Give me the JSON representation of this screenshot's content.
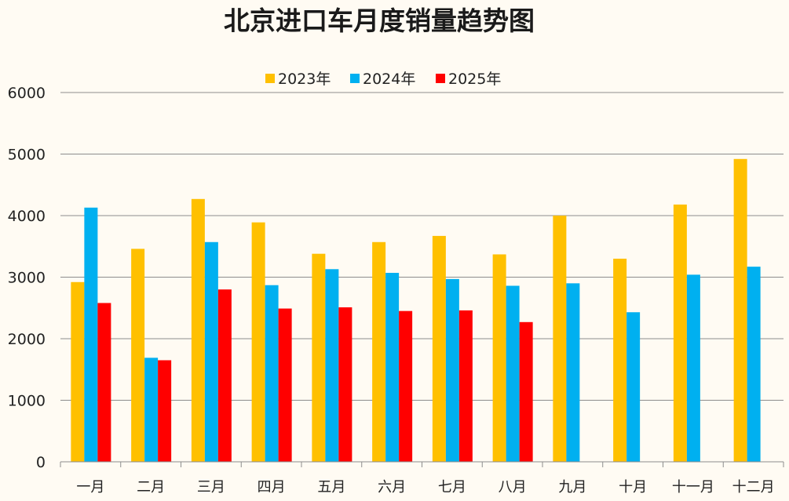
{
  "chart_data": {
    "type": "bar",
    "title": "北京进口车月度销量趋势图",
    "xlabel": "",
    "ylabel": "",
    "ylim": [
      0,
      6000
    ],
    "yticks": [
      0,
      1000,
      2000,
      3000,
      4000,
      5000,
      6000
    ],
    "grid": true,
    "legend_position": "top-center",
    "categories": [
      "一月",
      "二月",
      "三月",
      "四月",
      "五月",
      "六月",
      "七月",
      "八月",
      "九月",
      "十月",
      "十一月",
      "十二月"
    ],
    "series": [
      {
        "name": "2023年",
        "color": "#ffc000",
        "values": [
          2920,
          3460,
          4270,
          3890,
          3380,
          3570,
          3670,
          3370,
          4000,
          3300,
          4180,
          4920
        ]
      },
      {
        "name": "2024年",
        "color": "#00b0f0",
        "values": [
          4130,
          1690,
          3570,
          2870,
          3130,
          3070,
          2970,
          2860,
          2900,
          2430,
          3040,
          3170
        ]
      },
      {
        "name": "2025年",
        "color": "#ff0000",
        "values": [
          2580,
          1650,
          2800,
          2490,
          2510,
          2450,
          2460,
          2270,
          null,
          null,
          null,
          null
        ]
      }
    ]
  }
}
